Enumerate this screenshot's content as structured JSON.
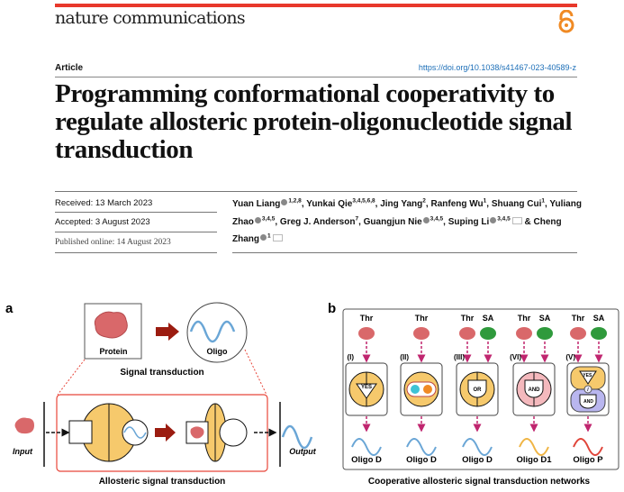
{
  "header": {
    "journal": "nature communications",
    "open_access_icon": "open-access-lock-icon",
    "article_type": "Article",
    "doi": "https://doi.org/10.1038/s41467-023-40589-z",
    "accent_color": "#e8382b"
  },
  "title": "Programming conformational cooperativity to regulate allosteric protein-oligonucleotide signal transduction",
  "dates": {
    "received": "Received: 13 March 2023",
    "accepted": "Accepted: 3 August 2023",
    "published": "Published online: 14 August 2023"
  },
  "authors": [
    {
      "name": "Yuan Liang",
      "orcid": true,
      "aff": "1,2,8",
      "sep": ", "
    },
    {
      "name": "Yunkai Qie",
      "orcid": false,
      "aff": "3,4,5,6,8",
      "sep": ", "
    },
    {
      "name": "Jing Yang",
      "orcid": false,
      "aff": "2",
      "sep": ", "
    },
    {
      "name": "Ranfeng Wu",
      "orcid": false,
      "aff": "1",
      "sep": ", "
    },
    {
      "name": "Shuang Cui",
      "orcid": false,
      "aff": "1",
      "sep": ", "
    },
    {
      "name": "Yuliang Zhao",
      "orcid": true,
      "aff": "3,4,5",
      "sep": ", "
    },
    {
      "name": "Greg J. Anderson",
      "orcid": false,
      "aff": "7",
      "sep": ", "
    },
    {
      "name": "Guangjun Nie",
      "orcid": true,
      "aff": "3,4,5",
      "sep": ", "
    },
    {
      "name": "Suping Li",
      "orcid": true,
      "aff": "3,4,5",
      "mail": true,
      "sep": " & "
    },
    {
      "name": "Cheng Zhang",
      "orcid": true,
      "aff": "1",
      "mail": true,
      "sep": ""
    }
  ],
  "figure": {
    "panel_a": {
      "label": "a",
      "protein": "Protein",
      "oligo": "Oligo",
      "caption_top": "Signal transduction",
      "input": "Input",
      "output": "Output",
      "caption_bottom": "Allosteric signal transduction"
    },
    "panel_b": {
      "label": "b",
      "caption": "Cooperative allosteric signal transduction networks",
      "columns": [
        {
          "roman": "(I)",
          "inputs": [
            "Thr"
          ],
          "gate": "YES",
          "output": "Oligo D",
          "wave_color": "#6aa6d6"
        },
        {
          "roman": "(II)",
          "inputs": [
            "Thr"
          ],
          "gate": "",
          "output": "Oligo D",
          "wave_color": "#6aa6d6"
        },
        {
          "roman": "(III)",
          "inputs": [
            "Thr",
            "SA"
          ],
          "gate": "OR",
          "output": "Oligo D",
          "wave_color": "#6aa6d6"
        },
        {
          "roman": "(VI)",
          "inputs": [
            "Thr",
            "SA"
          ],
          "gate": "AND",
          "output": "Oligo D1",
          "wave_color": "#f0b545"
        },
        {
          "roman": "(V)",
          "inputs": [
            "Thr",
            "SA"
          ],
          "gate": "YES / AND",
          "output": "Oligo P",
          "wave_color": "#e0453a"
        }
      ]
    },
    "colors": {
      "protein": "#d9686a",
      "sa": "#2f9a3c",
      "gold": "#f6c96c",
      "pink": "#f4b9bd",
      "lavender": "#b9b6ef",
      "arrow": "#9b1c10",
      "dash": "#c0266f",
      "frame": "#e8463a"
    }
  }
}
